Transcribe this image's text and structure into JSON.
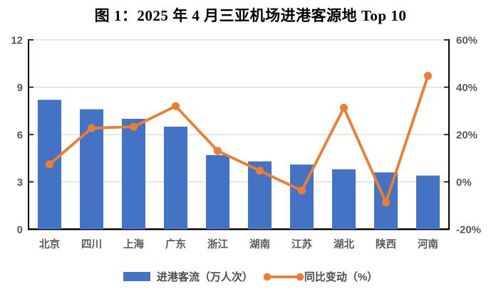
{
  "title": "图 1：2025 年 4 月三亚机场进港客源地 Top 10",
  "legend": {
    "bar_label": "进港客流（万人次）",
    "line_label": "同比变动（%）"
  },
  "colors": {
    "bar": "#4472C4",
    "line": "#ED7D31",
    "grid": "#D9D9D9",
    "axis": "#000000",
    "tick_label": "#595959"
  },
  "chart_data": {
    "type": "combo",
    "title": "图 1：2025 年 4 月三亚机场进港客源地 Top 10",
    "categories": [
      "北京",
      "四川",
      "上海",
      "广东",
      "浙江",
      "湖南",
      "江苏",
      "湖北",
      "陕西",
      "河南"
    ],
    "series": [
      {
        "name": "进港客流（万人次）",
        "type": "bar",
        "axis": "left",
        "values": [
          8.2,
          7.6,
          7.0,
          6.5,
          4.7,
          4.3,
          4.1,
          3.8,
          3.6,
          3.4
        ]
      },
      {
        "name": "同比变动（%）",
        "type": "line",
        "axis": "right",
        "values": [
          7.4,
          22.7,
          23.3,
          32.0,
          13.1,
          4.7,
          -3.7,
          31.3,
          -8.7,
          44.8
        ]
      }
    ],
    "left_axis": {
      "min": 0,
      "max": 12,
      "ticks": [
        0,
        3,
        6,
        9,
        12
      ],
      "tick_labels": [
        "0",
        "3",
        "6",
        "9",
        "12"
      ]
    },
    "right_axis": {
      "min": -20,
      "max": 60,
      "ticks": [
        -20,
        0,
        20,
        40,
        60
      ],
      "tick_labels": [
        "-20%",
        "0%",
        "20%",
        "40%",
        "60%"
      ]
    },
    "grid": true,
    "legend_position": "bottom"
  }
}
